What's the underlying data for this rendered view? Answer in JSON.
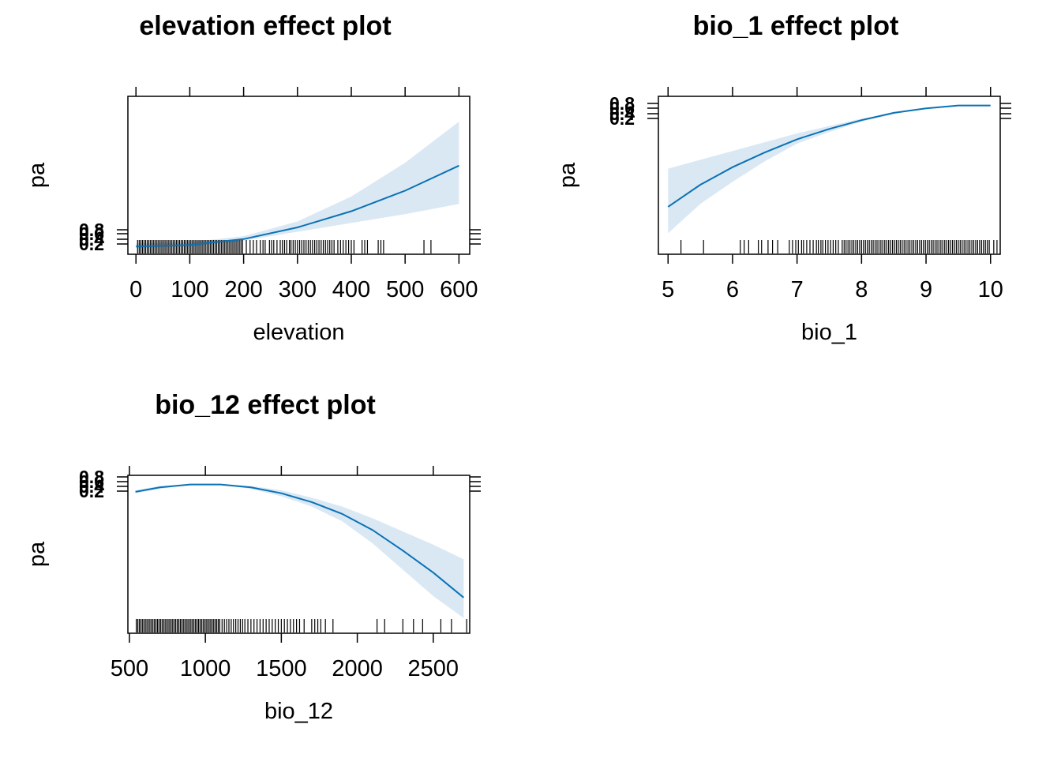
{
  "chart_data": [
    {
      "type": "line",
      "title": "elevation effect plot",
      "xlabel": "elevation",
      "ylabel": "pa",
      "x_ticks": [
        0,
        100,
        200,
        300,
        400,
        500,
        600
      ],
      "xlim": [
        -15,
        620
      ],
      "y_ticks": [
        "0.8",
        "0.6",
        "0.4",
        "0.2"
      ],
      "series": [
        {
          "x": [
            0,
            100,
            200,
            300,
            400,
            500,
            600
          ],
          "y": [
            0.01,
            0.02,
            0.06,
            0.14,
            0.25,
            0.39,
            0.56
          ],
          "lower": [
            0.0,
            0.01,
            0.05,
            0.11,
            0.17,
            0.23,
            0.3
          ],
          "upper": [
            0.03,
            0.04,
            0.08,
            0.18,
            0.35,
            0.58,
            0.86
          ]
        }
      ],
      "rug": [
        3,
        6,
        9,
        12,
        15,
        18,
        21,
        24,
        27,
        30,
        33,
        36,
        39,
        42,
        45,
        48,
        51,
        54,
        57,
        60,
        63,
        66,
        69,
        72,
        75,
        78,
        81,
        84,
        87,
        90,
        93,
        96,
        99,
        102,
        105,
        108,
        111,
        114,
        117,
        120,
        123,
        126,
        129,
        132,
        135,
        138,
        141,
        144,
        147,
        150,
        153,
        156,
        159,
        162,
        165,
        168,
        171,
        174,
        177,
        180,
        183,
        186,
        189,
        192,
        195,
        198,
        205,
        212,
        218,
        224,
        231,
        236,
        240,
        248,
        252,
        256,
        262,
        268,
        272,
        276,
        280,
        285,
        288,
        292,
        296,
        300,
        304,
        308,
        312,
        316,
        320,
        324,
        328,
        332,
        336,
        340,
        344,
        348,
        352,
        356,
        360,
        364,
        368,
        375,
        380,
        385,
        390,
        395,
        400,
        405,
        420,
        425,
        430,
        450,
        455,
        460,
        535,
        548
      ]
    },
    {
      "type": "line",
      "title": "bio_1 effect plot",
      "xlabel": "bio_1",
      "ylabel": "pa",
      "x_ticks": [
        5,
        6,
        7,
        8,
        9,
        10
      ],
      "xlim": [
        4.85,
        10.15
      ],
      "y_ticks": [
        "0.8",
        "0.6",
        "0.4",
        "0.2"
      ],
      "series": [
        {
          "x": [
            5,
            5.5,
            6,
            6.5,
            7,
            7.5,
            8,
            8.5,
            9,
            9.5,
            10
          ],
          "y": [
            0.28,
            0.43,
            0.55,
            0.65,
            0.74,
            0.81,
            0.87,
            0.92,
            0.95,
            0.97,
            0.97
          ],
          "lower": [
            0.1,
            0.3,
            0.45,
            0.59,
            0.71,
            0.79,
            0.86,
            0.91,
            0.95,
            0.97,
            0.97
          ],
          "upper": [
            0.54,
            0.6,
            0.66,
            0.72,
            0.78,
            0.83,
            0.88,
            0.92,
            0.95,
            0.97,
            0.97
          ]
        }
      ],
      "rug": [
        5.2,
        5.55,
        6.12,
        6.18,
        6.25,
        6.4,
        6.45,
        6.55,
        6.62,
        6.7,
        6.88,
        6.93,
        6.98,
        7.02,
        7.07,
        7.1,
        7.15,
        7.2,
        7.25,
        7.3,
        7.33,
        7.37,
        7.4,
        7.44,
        7.48,
        7.52,
        7.56,
        7.6,
        7.64,
        7.7,
        7.73,
        7.76,
        7.79,
        7.82,
        7.85,
        7.88,
        7.91,
        7.94,
        7.97,
        8.0,
        8.03,
        8.06,
        8.09,
        8.12,
        8.15,
        8.18,
        8.21,
        8.24,
        8.27,
        8.3,
        8.33,
        8.36,
        8.39,
        8.42,
        8.45,
        8.48,
        8.51,
        8.54,
        8.57,
        8.6,
        8.63,
        8.66,
        8.69,
        8.72,
        8.75,
        8.78,
        8.81,
        8.84,
        8.87,
        8.9,
        8.93,
        8.96,
        8.99,
        9.02,
        9.05,
        9.08,
        9.11,
        9.14,
        9.17,
        9.2,
        9.23,
        9.26,
        9.29,
        9.32,
        9.35,
        9.38,
        9.41,
        9.44,
        9.47,
        9.5,
        9.53,
        9.56,
        9.59,
        9.62,
        9.65,
        9.68,
        9.71,
        9.74,
        9.77,
        9.8,
        9.83,
        9.86,
        9.89,
        9.92,
        9.95,
        9.98,
        10.05,
        10.1
      ]
    },
    {
      "type": "line",
      "title": "bio_12 effect plot",
      "xlabel": "bio_12",
      "ylabel": "pa",
      "x_ticks": [
        500,
        1000,
        1500,
        2000,
        2500
      ],
      "xlim": [
        490,
        2740
      ],
      "y_ticks": [
        "0.8",
        "0.6",
        "0.4",
        "0.2"
      ],
      "series": [
        {
          "x": [
            540,
            700,
            900,
            1100,
            1300,
            1500,
            1700,
            1900,
            2100,
            2300,
            2500,
            2700
          ],
          "y": [
            0.92,
            0.95,
            0.97,
            0.97,
            0.95,
            0.91,
            0.85,
            0.77,
            0.66,
            0.52,
            0.37,
            0.2
          ],
          "lower": [
            0.91,
            0.94,
            0.97,
            0.97,
            0.94,
            0.89,
            0.82,
            0.72,
            0.57,
            0.39,
            0.21,
            0.06
          ],
          "upper": [
            0.93,
            0.96,
            0.97,
            0.97,
            0.96,
            0.93,
            0.88,
            0.82,
            0.74,
            0.65,
            0.56,
            0.46
          ]
        }
      ],
      "rug": [
        545,
        555,
        565,
        575,
        585,
        595,
        605,
        615,
        625,
        635,
        645,
        655,
        665,
        675,
        685,
        695,
        705,
        715,
        725,
        735,
        745,
        755,
        765,
        775,
        785,
        795,
        805,
        815,
        825,
        835,
        845,
        855,
        865,
        875,
        885,
        895,
        905,
        915,
        925,
        935,
        945,
        955,
        965,
        975,
        985,
        995,
        1005,
        1015,
        1025,
        1035,
        1045,
        1055,
        1065,
        1075,
        1085,
        1095,
        1110,
        1125,
        1140,
        1155,
        1170,
        1185,
        1200,
        1215,
        1230,
        1245,
        1260,
        1280,
        1300,
        1320,
        1340,
        1360,
        1380,
        1400,
        1420,
        1440,
        1460,
        1480,
        1500,
        1520,
        1540,
        1560,
        1580,
        1600,
        1620,
        1650,
        1700,
        1720,
        1740,
        1760,
        1790,
        1840,
        2130,
        2180,
        2300,
        2370,
        2430,
        2550,
        2620,
        2720
      ]
    }
  ]
}
